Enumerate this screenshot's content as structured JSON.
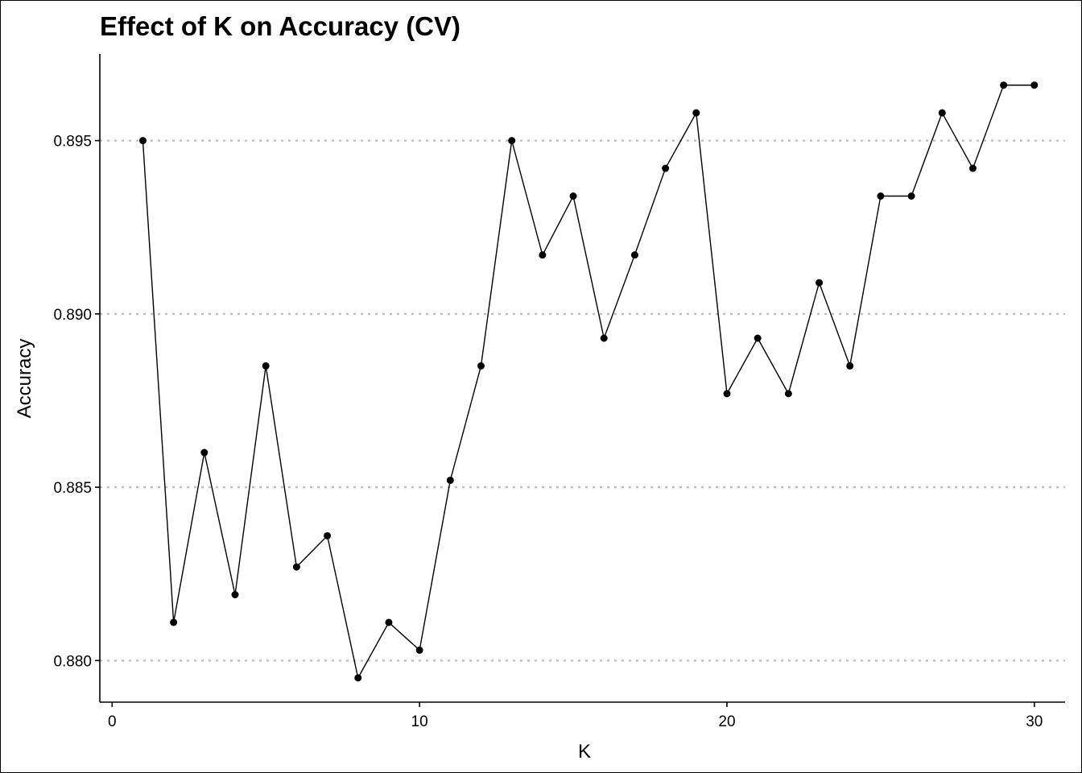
{
  "chart_data": {
    "type": "line",
    "title": "Effect of K on Accuracy (CV)",
    "xlabel": "K",
    "ylabel": "Accuracy",
    "x": [
      1,
      2,
      3,
      4,
      5,
      6,
      7,
      8,
      9,
      10,
      11,
      12,
      13,
      14,
      15,
      16,
      17,
      18,
      19,
      20,
      21,
      22,
      23,
      24,
      25,
      26,
      27,
      28,
      29,
      30
    ],
    "series": [
      {
        "values": [
          0.895,
          0.8811,
          0.886,
          0.8819,
          0.8885,
          0.8827,
          0.8836,
          0.8795,
          0.8811,
          0.8803,
          0.8852,
          0.8885,
          0.895,
          0.8917,
          0.8934,
          0.8893,
          0.8917,
          0.8942,
          0.8958,
          0.8877,
          0.8893,
          0.8877,
          0.8909,
          0.8885,
          0.8934,
          0.8934,
          0.8958,
          0.8942,
          0.8966,
          0.8966
        ]
      }
    ],
    "xlim": [
      -0.4,
      31.0
    ],
    "ylim": [
      0.8788,
      0.8975
    ],
    "x_ticks": [
      0,
      10,
      20,
      30
    ],
    "x_tick_labels": [
      "0",
      "10",
      "20",
      "30"
    ],
    "y_ticks": [
      0.88,
      0.885,
      0.89,
      0.895
    ],
    "y_tick_labels": [
      "0.880",
      "0.885",
      "0.890",
      "0.895"
    ],
    "grid": "horizontal-dotted",
    "markers": true,
    "colors": {
      "line": "#000000",
      "grid": "#bdbdbd"
    }
  }
}
